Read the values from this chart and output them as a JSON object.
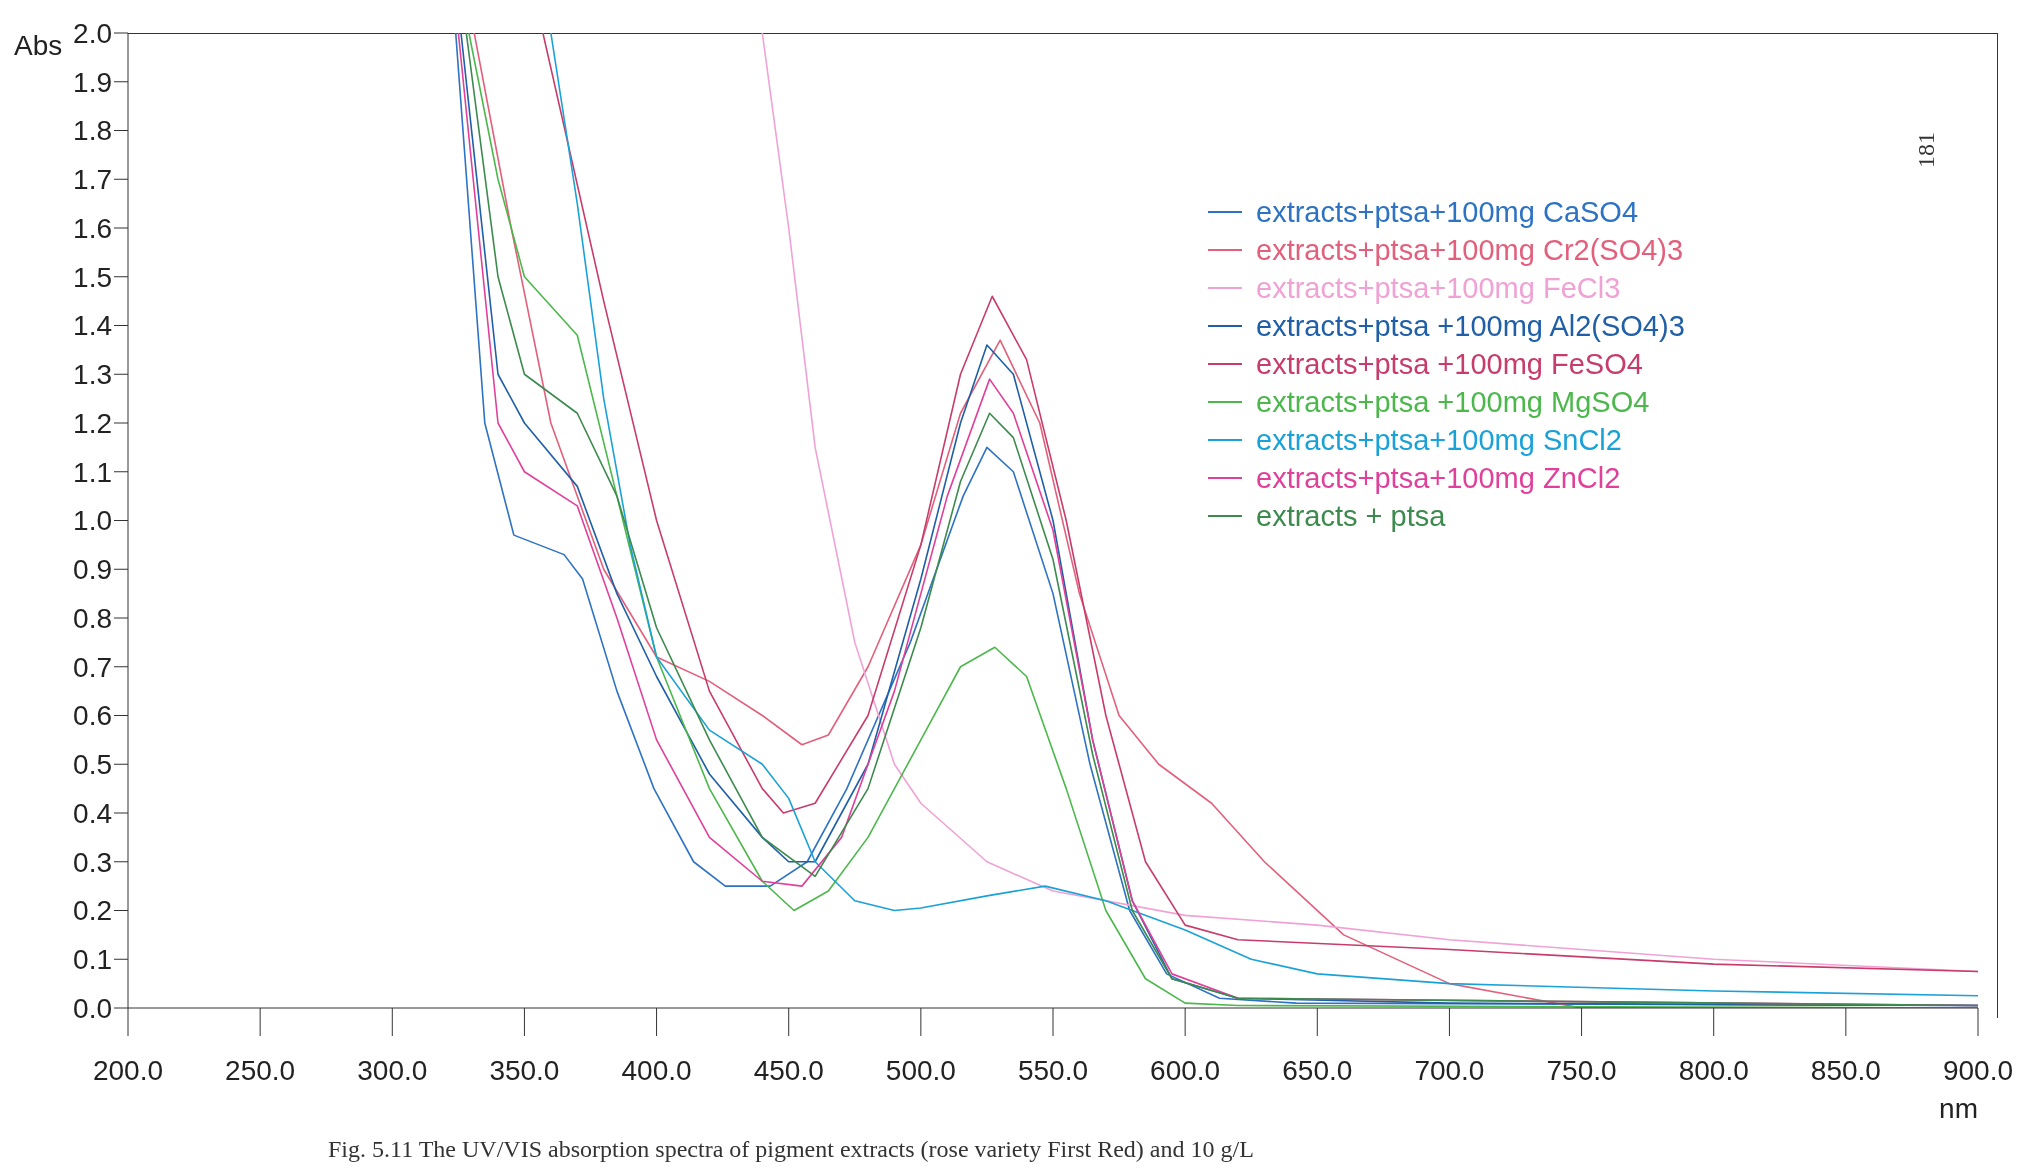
{
  "chart_data": {
    "type": "line",
    "xlabel": "nm",
    "ylabel": "Abs",
    "annotations": [
      "Fig. 5.11  The UV/VIS absorption spectra of pigment extracts (rose variety First Red) and 10 g/L",
      "181"
    ],
    "xlim": [
      200,
      900
    ],
    "xticks": [
      {
        "value": 200,
        "label": "200.0"
      },
      {
        "value": 250,
        "label": "250.0"
      },
      {
        "value": 300,
        "label": "300.0"
      },
      {
        "value": 350,
        "label": "350.0"
      },
      {
        "value": 400,
        "label": "400.0"
      },
      {
        "value": 450,
        "label": "450.0"
      },
      {
        "value": 500,
        "label": "500.0"
      },
      {
        "value": 550,
        "label": "550.0"
      },
      {
        "value": 600,
        "label": "600.0"
      },
      {
        "value": 650,
        "label": "650.0"
      },
      {
        "value": 700,
        "label": "700.0"
      },
      {
        "value": 750,
        "label": "750.0"
      },
      {
        "value": 800,
        "label": "800.0"
      },
      {
        "value": 850,
        "label": "850.0"
      },
      {
        "value": 900,
        "label": "900.0"
      }
    ],
    "ylim": [
      0,
      2
    ],
    "yticks": [
      {
        "value": 0,
        "label": "0.0"
      },
      {
        "value": 0.1,
        "label": "0.1"
      },
      {
        "value": 0.2,
        "label": "0.2"
      },
      {
        "value": 0.3,
        "label": "0.3"
      },
      {
        "value": 0.4,
        "label": "0.4"
      },
      {
        "value": 0.5,
        "label": "0.5"
      },
      {
        "value": 0.6,
        "label": "0.6"
      },
      {
        "value": 0.7,
        "label": "0.7"
      },
      {
        "value": 0.8,
        "label": "0.8"
      },
      {
        "value": 0.9,
        "label": "0.9"
      },
      {
        "value": 1,
        "label": "1.0"
      },
      {
        "value": 1.1,
        "label": "1.1"
      },
      {
        "value": 1.2,
        "label": "1.2"
      },
      {
        "value": 1.3,
        "label": "1.3"
      },
      {
        "value": 1.4,
        "label": "1.4"
      },
      {
        "value": 1.5,
        "label": "1.5"
      },
      {
        "value": 1.6,
        "label": "1.6"
      },
      {
        "value": 1.7,
        "label": "1.7"
      },
      {
        "value": 1.8,
        "label": "1.8"
      },
      {
        "value": 1.9,
        "label": "1.9"
      },
      {
        "value": 2,
        "label": "2.0"
      }
    ],
    "grid": false,
    "legend": "top right",
    "marker": "none",
    "line_style": "solid",
    "series": [
      {
        "name": "extracts+ptsa+100mg CaSO4",
        "color": "#2e72c4",
        "x": [
          324,
          335,
          346,
          365,
          372,
          385,
          399,
          414,
          426,
          443,
          457,
          472,
          496,
          516,
          525,
          535,
          550,
          564,
          579,
          593,
          613,
          642,
          900
        ],
        "values": [
          2.0,
          1.2,
          0.97,
          0.93,
          0.88,
          0.65,
          0.45,
          0.3,
          0.25,
          0.25,
          0.3,
          0.45,
          0.75,
          1.05,
          1.15,
          1.1,
          0.85,
          0.5,
          0.2,
          0.07,
          0.02,
          0.01,
          0.005
        ]
      },
      {
        "name": "extracts+ptsa+100mg Cr2(SO4)3",
        "color": "#e2607c",
        "x": [
          331,
          345,
          360,
          380,
          400,
          420,
          440,
          455,
          465,
          480,
          500,
          515,
          530,
          545,
          560,
          575,
          590,
          610,
          630,
          660,
          700,
          750,
          900
        ],
        "values": [
          2.0,
          1.6,
          1.2,
          0.9,
          0.72,
          0.67,
          0.6,
          0.54,
          0.56,
          0.7,
          0.95,
          1.22,
          1.37,
          1.2,
          0.85,
          0.6,
          0.5,
          0.42,
          0.3,
          0.15,
          0.05,
          0.0,
          0.0
        ]
      },
      {
        "name": "extracts+ptsa+100mg FeCl3",
        "color": "#f0a2d4",
        "x": [
          440,
          450,
          460,
          475,
          490,
          500,
          525,
          550,
          600,
          650,
          700,
          800,
          900
        ],
        "values": [
          2.0,
          1.6,
          1.15,
          0.75,
          0.5,
          0.42,
          0.3,
          0.24,
          0.19,
          0.17,
          0.14,
          0.1,
          0.075
        ]
      },
      {
        "name": "extracts+ptsa +100mg Al2(SO4)3",
        "color": "#1f5fa8",
        "x": [
          326,
          340,
          350,
          370,
          385,
          400,
          420,
          440,
          450,
          460,
          480,
          500,
          515,
          525,
          535,
          550,
          565,
          580,
          595,
          620,
          700,
          900
        ],
        "values": [
          2.0,
          1.3,
          1.2,
          1.07,
          0.85,
          0.68,
          0.48,
          0.35,
          0.3,
          0.3,
          0.5,
          0.88,
          1.2,
          1.36,
          1.3,
          1.0,
          0.55,
          0.22,
          0.06,
          0.02,
          0.01,
          0.005
        ]
      },
      {
        "name": "extracts+ptsa +100mg FeSO4",
        "color": "#c83c6a",
        "x": [
          357,
          380,
          400,
          420,
          440,
          448,
          460,
          480,
          500,
          515,
          527,
          540,
          555,
          570,
          585,
          600,
          620,
          700,
          800,
          900
        ],
        "values": [
          2.0,
          1.45,
          1.0,
          0.65,
          0.45,
          0.4,
          0.42,
          0.6,
          0.95,
          1.3,
          1.46,
          1.33,
          1.0,
          0.6,
          0.3,
          0.17,
          0.14,
          0.12,
          0.09,
          0.075
        ]
      },
      {
        "name": "extracts+ptsa +100mg MgSO4",
        "color": "#4cb84c",
        "x": [
          329,
          340,
          350,
          370,
          385,
          400,
          420,
          440,
          452,
          465,
          480,
          500,
          515,
          528,
          540,
          555,
          570,
          585,
          600,
          620,
          900
        ],
        "values": [
          2.0,
          1.7,
          1.5,
          1.38,
          1.05,
          0.72,
          0.45,
          0.26,
          0.2,
          0.24,
          0.35,
          0.55,
          0.7,
          0.74,
          0.68,
          0.45,
          0.2,
          0.06,
          0.01,
          0.005,
          0.0
        ]
      },
      {
        "name": "extracts+ptsa+100mg SnCl2",
        "color": "#1aa2d8",
        "x": [
          360,
          370,
          380,
          390,
          400,
          420,
          440,
          450,
          460,
          475,
          490,
          500,
          525,
          547,
          570,
          600,
          625,
          650,
          700,
          800,
          900
        ],
        "values": [
          2.0,
          1.65,
          1.25,
          0.95,
          0.72,
          0.57,
          0.5,
          0.43,
          0.3,
          0.22,
          0.2,
          0.205,
          0.23,
          0.25,
          0.22,
          0.16,
          0.1,
          0.07,
          0.05,
          0.035,
          0.025
        ]
      },
      {
        "name": "extracts+ptsa+100mg ZnCl2",
        "color": "#e0409a",
        "x": [
          325,
          340,
          350,
          370,
          385,
          400,
          420,
          440,
          455,
          470,
          490,
          510,
          526,
          535,
          550,
          565,
          580,
          595,
          620,
          900
        ],
        "values": [
          2.0,
          1.2,
          1.1,
          1.03,
          0.8,
          0.55,
          0.35,
          0.26,
          0.25,
          0.35,
          0.65,
          1.05,
          1.29,
          1.22,
          0.98,
          0.55,
          0.22,
          0.07,
          0.02,
          0.005
        ]
      },
      {
        "name": "extracts + ptsa",
        "color": "#3d8a4e",
        "x": [
          328,
          340,
          350,
          370,
          385,
          400,
          420,
          440,
          460,
          480,
          500,
          515,
          526,
          535,
          550,
          565,
          580,
          595,
          620,
          900
        ],
        "values": [
          2.0,
          1.5,
          1.3,
          1.22,
          1.05,
          0.78,
          0.55,
          0.35,
          0.27,
          0.45,
          0.78,
          1.08,
          1.22,
          1.17,
          0.92,
          0.52,
          0.2,
          0.06,
          0.02,
          0.005
        ]
      }
    ]
  }
}
